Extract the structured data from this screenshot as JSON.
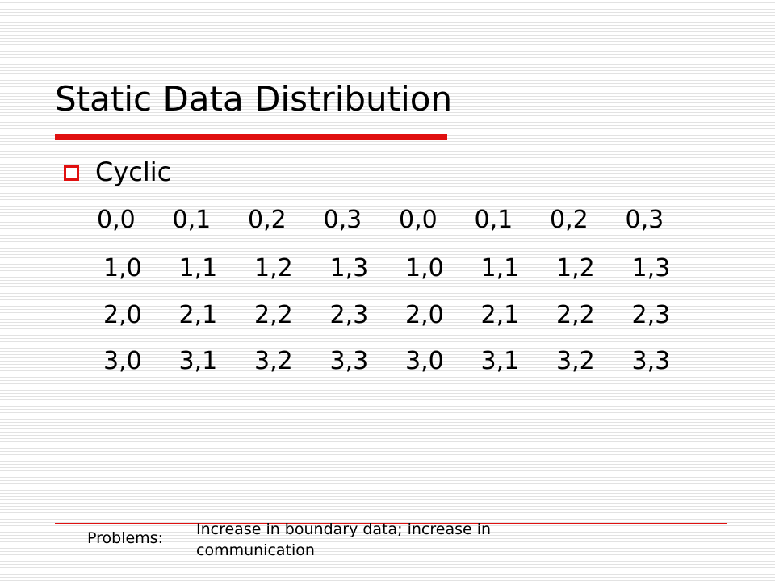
{
  "header": {
    "title": "Static Data Distribution"
  },
  "bullet": {
    "text": "Cyclic"
  },
  "grid": {
    "rows": [
      [
        "0,0",
        "0,1",
        "0,2",
        "0,3",
        "0,0",
        "0,1",
        "0,2",
        "0,3"
      ],
      [
        "1,0",
        "1,1",
        "1,2",
        "1,3",
        "1,0",
        "1,1",
        "1,2",
        "1,3"
      ],
      [
        "2,0",
        "2,1",
        "2,2",
        "2,3",
        "2,0",
        "2,1",
        "2,2",
        "2,3"
      ],
      [
        "3,0",
        "3,1",
        "3,2",
        "3,3",
        "3,0",
        "3,1",
        "3,2",
        "3,3"
      ]
    ]
  },
  "footer": {
    "label": "Problems:",
    "note": "Increase in boundary data; increase in communication"
  }
}
